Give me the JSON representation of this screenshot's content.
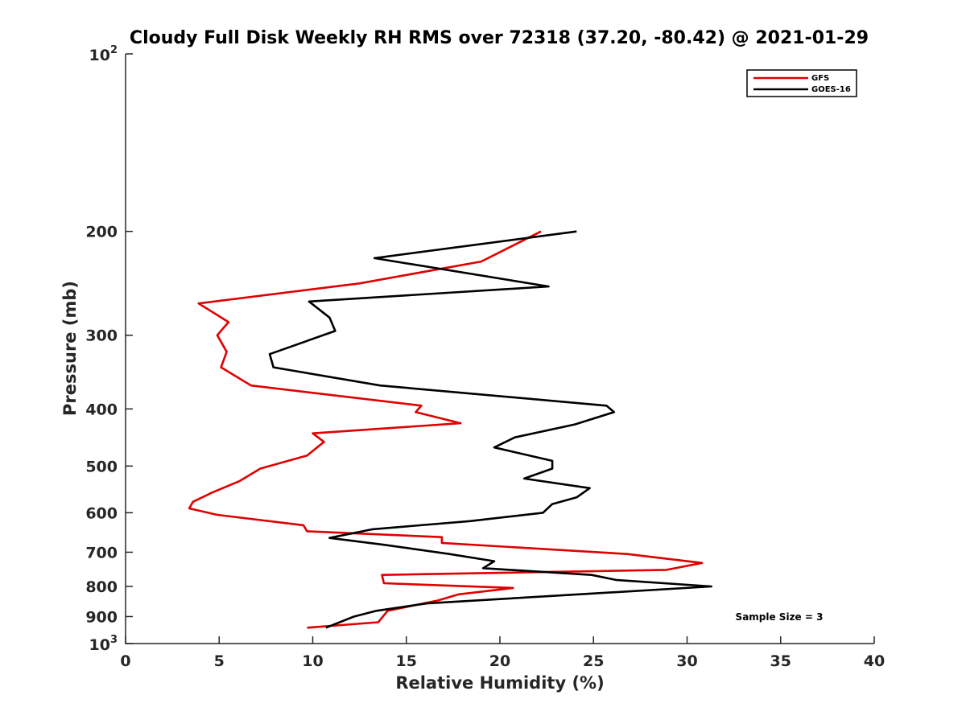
{
  "chart_data": {
    "type": "line",
    "title": "Cloudy Full Disk Weekly RH RMS over 72318 (37.20, -80.42) @ 2021-01-29",
    "xlabel": "Relative Humidity (%)",
    "ylabel": "Pressure (mb)",
    "xlim": [
      0,
      40
    ],
    "ylim": [
      100,
      1000
    ],
    "yscale": "log",
    "y_inverted": true,
    "x_ticks": [
      0,
      5,
      10,
      15,
      20,
      25,
      30,
      35,
      40
    ],
    "x_tick_labels": [
      "0",
      "5",
      "10",
      "15",
      "20",
      "25",
      "30",
      "35",
      "40"
    ],
    "y_ticks": [
      200,
      300,
      400,
      500,
      600,
      700,
      800,
      900
    ],
    "y_tick_labels": [
      "200",
      "300",
      "400",
      "500",
      "600",
      "700",
      "800",
      "900"
    ],
    "y_endpoint_labels": {
      "top": {
        "value": 100,
        "base": "10",
        "exp": "2"
      },
      "bottom": {
        "value": 1000,
        "base": "10",
        "exp": "3"
      }
    },
    "legend_position": "top-right",
    "annotation": "Sample Size = 3",
    "series": [
      {
        "name": "GFS",
        "color": "#e00000",
        "x": [
          22.2,
          19.0,
          12.5,
          3.9,
          5.5,
          4.9,
          5.4,
          5.1,
          6.7,
          15.8,
          15.5,
          17.9,
          10.0,
          10.6,
          9.7,
          7.2,
          6.1,
          4.6,
          3.6,
          3.4,
          4.9,
          9.5,
          9.7,
          16.9,
          16.9,
          26.8,
          30.8,
          28.9,
          13.7,
          13.8,
          20.7,
          17.8,
          16.7,
          14.0,
          13.5,
          9.7
        ],
        "y": [
          200,
          225,
          245,
          265,
          285,
          300,
          320,
          340,
          365,
          395,
          405,
          423,
          440,
          455,
          480,
          505,
          530,
          555,
          575,
          590,
          605,
          630,
          645,
          660,
          675,
          705,
          730,
          750,
          765,
          790,
          805,
          825,
          845,
          880,
          920,
          940
        ]
      },
      {
        "name": "GOES-16",
        "color": "#000000",
        "x": [
          24.1,
          13.3,
          22.6,
          9.8,
          10.9,
          11.2,
          7.7,
          7.9,
          13.6,
          25.7,
          26.1,
          24.0,
          20.8,
          19.7,
          22.8,
          22.8,
          21.3,
          24.8,
          24.1,
          22.8,
          22.3,
          18.4,
          13.2,
          10.9,
          13.8,
          17.3,
          19.7,
          19.1,
          24.9,
          26.2,
          31.3,
          16.1,
          13.4,
          12.2,
          10.7
        ],
        "y": [
          200,
          222,
          248,
          263,
          280,
          295,
          323,
          340,
          365,
          395,
          405,
          425,
          447,
          465,
          490,
          505,
          525,
          545,
          565,
          580,
          600,
          620,
          640,
          662,
          680,
          705,
          725,
          745,
          765,
          780,
          800,
          855,
          880,
          900,
          940
        ]
      }
    ]
  }
}
